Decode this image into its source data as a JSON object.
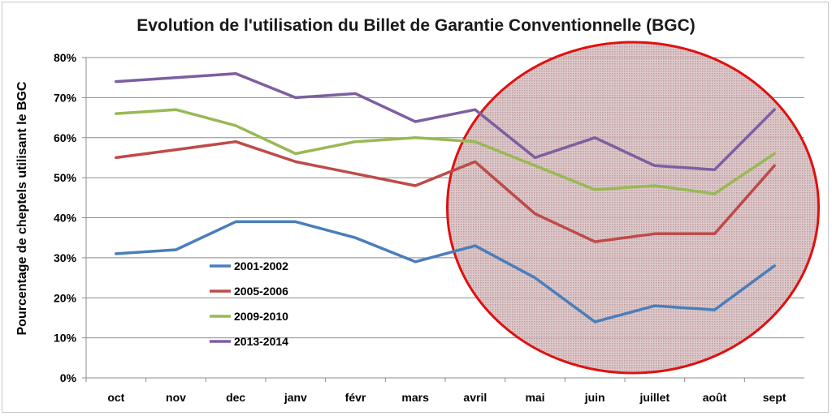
{
  "chart_data": {
    "type": "line",
    "title": "Evolution de l'utilisation du Billet de Garantie Conventionnelle (BGC)",
    "xlabel": "",
    "ylabel": "Pourcentage de cheptels utilisant le BGC",
    "categories": [
      "oct",
      "nov",
      "dec",
      "janv",
      "févr",
      "mars",
      "avril",
      "mai",
      "juin",
      "juillet",
      "août",
      "sept"
    ],
    "ylim": [
      0,
      80
    ],
    "yticks": [
      "0%",
      "10%",
      "20%",
      "30%",
      "40%",
      "50%",
      "60%",
      "70%",
      "80%"
    ],
    "grid": true,
    "legend_position": "lower-left",
    "series": [
      {
        "name": "2001-2002",
        "color": "#4a7ebb",
        "values": [
          31,
          32,
          39,
          39,
          35,
          29,
          33,
          25,
          14,
          18,
          17,
          28
        ]
      },
      {
        "name": "2005-2006",
        "color": "#be4b48",
        "values": [
          55,
          57,
          59,
          54,
          51,
          48,
          54,
          41,
          34,
          36,
          36,
          53
        ]
      },
      {
        "name": "2009-2010",
        "color": "#98b954",
        "values": [
          66,
          67,
          63,
          56,
          59,
          60,
          59,
          53,
          47,
          48,
          46,
          56
        ]
      },
      {
        "name": "2013-2014",
        "color": "#7d5fa0",
        "values": [
          74,
          75,
          76,
          70,
          71,
          64,
          67,
          55,
          60,
          53,
          52,
          67
        ]
      }
    ],
    "annotation": {
      "shape": "ellipse",
      "stroke_color": "#e01010",
      "fill_color": "#c8a0a4",
      "covers_categories": [
        "mai",
        "juin",
        "juillet",
        "août"
      ]
    }
  }
}
